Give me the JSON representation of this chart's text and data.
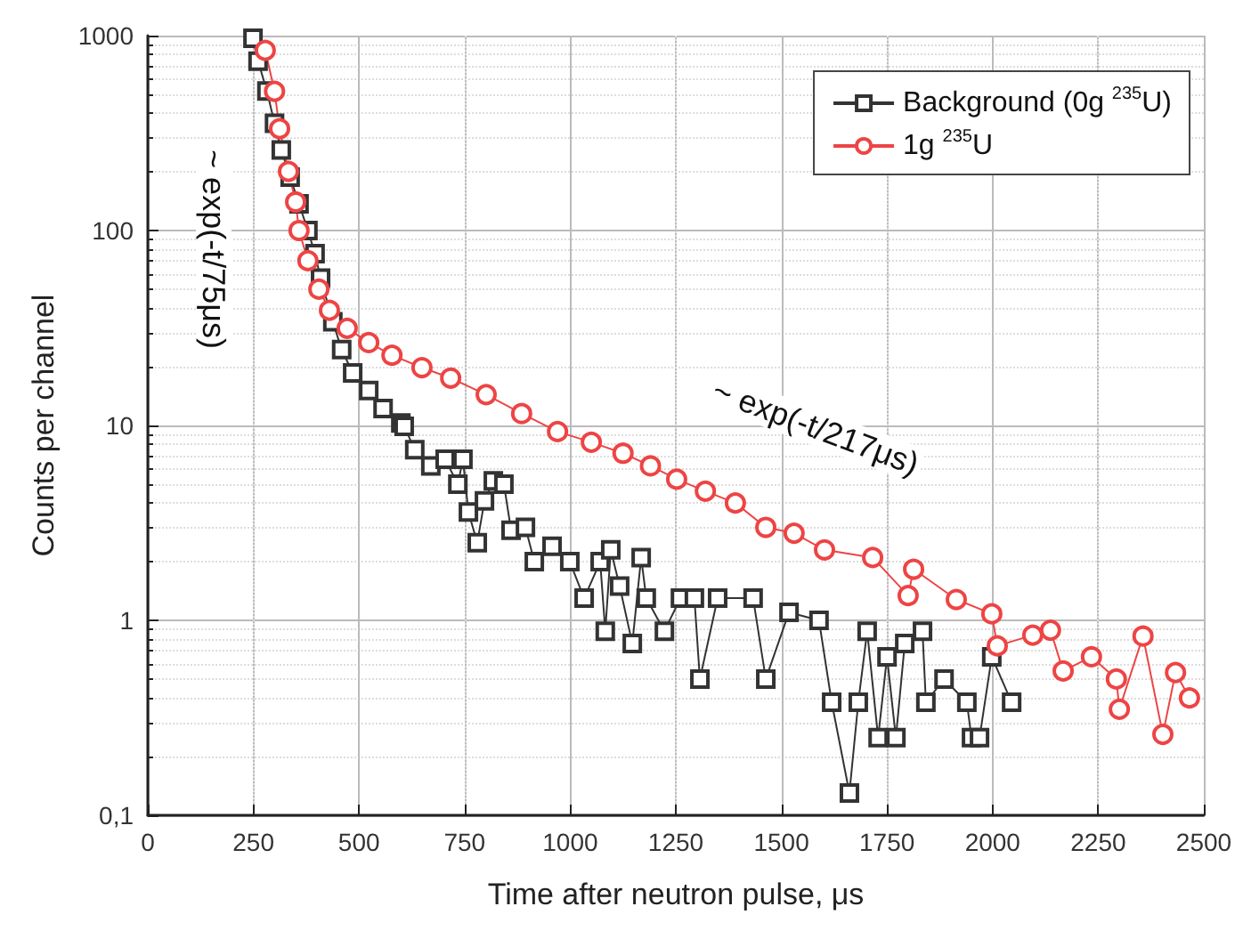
{
  "chart_data": {
    "type": "line",
    "xlabel": "Time after neutron pulse, μs",
    "ylabel": "Counts per channel",
    "xlim": [
      0,
      2500
    ],
    "xticks": [
      0,
      250,
      500,
      750,
      1000,
      1250,
      1500,
      1750,
      2000,
      2250,
      2500
    ],
    "ylim": [
      0.1,
      1000
    ],
    "yticks": [
      {
        "value": 0.1,
        "label": "0,1"
      },
      1,
      10,
      100,
      1000
    ],
    "log": "y",
    "grid": true,
    "legend": "top right",
    "annotations": [
      "~ exp(-t/75μs)",
      "~ exp(-t/217μs)"
    ],
    "series": [
      {
        "name": "Background (0g $^{235}$U)",
        "color": "#333333",
        "marker": "square",
        "x": [
          249,
          261,
          282,
          300,
          316,
          337,
          358,
          379,
          396,
          409,
          438,
          459,
          485,
          523,
          557,
          599,
          607,
          632,
          670,
          704,
          734,
          746,
          759,
          780,
          797,
          818,
          843,
          860,
          894,
          915,
          957,
          999,
          1033,
          1071,
          1083,
          1096,
          1117,
          1147,
          1168,
          1180,
          1223,
          1261,
          1294,
          1307,
          1349,
          1433,
          1463,
          1518,
          1589,
          1619,
          1661,
          1682,
          1703,
          1729,
          1750,
          1771,
          1792,
          1834,
          1842,
          1885,
          1939,
          1950,
          1969,
          1998,
          2045
        ],
        "values": [
          970,
          740,
          520,
          355,
          259,
          188,
          137,
          100,
          76,
          57,
          34,
          24.5,
          18.6,
          15.1,
          12.2,
          10.3,
          9.9,
          7.5,
          6.2,
          6.7,
          5.0,
          6.7,
          3.6,
          2.5,
          4.1,
          5.2,
          5.0,
          2.9,
          3.0,
          2.0,
          2.4,
          2.0,
          1.3,
          2.0,
          0.88,
          2.3,
          1.5,
          0.76,
          2.1,
          1.3,
          0.88,
          1.3,
          1.3,
          0.5,
          1.3,
          1.3,
          0.5,
          1.1,
          1.0,
          0.38,
          0.13,
          0.38,
          0.88,
          0.25,
          0.65,
          0.25,
          0.76,
          0.88,
          0.38,
          0.5,
          0.38,
          0.25,
          0.25,
          0.65,
          0.38
        ]
      },
      {
        "name": "1g $^{235}$U",
        "color": "#ee4444",
        "marker": "circle",
        "x": [
          278,
          300,
          312,
          333,
          350,
          358,
          379,
          405,
          430,
          472,
          523,
          578,
          649,
          717,
          801,
          885,
          970,
          1050,
          1125,
          1190,
          1252,
          1320,
          1391,
          1463,
          1530,
          1602,
          1716,
          1800,
          1813,
          1914,
          1998,
          2011,
          2095,
          2137,
          2167,
          2234,
          2293,
          2300,
          2356,
          2403,
          2433,
          2466
        ],
        "values": [
          840,
          518,
          333,
          201,
          140,
          100,
          70,
          50,
          39,
          31.5,
          26.6,
          22.9,
          19.8,
          17.5,
          14.4,
          11.5,
          9.3,
          8.2,
          7.2,
          6.2,
          5.3,
          4.6,
          4.0,
          3.0,
          2.8,
          2.3,
          2.1,
          1.34,
          1.83,
          1.28,
          1.08,
          0.74,
          0.84,
          0.89,
          0.55,
          0.65,
          0.5,
          0.35,
          0.83,
          0.26,
          0.54,
          0.4
        ]
      }
    ]
  }
}
